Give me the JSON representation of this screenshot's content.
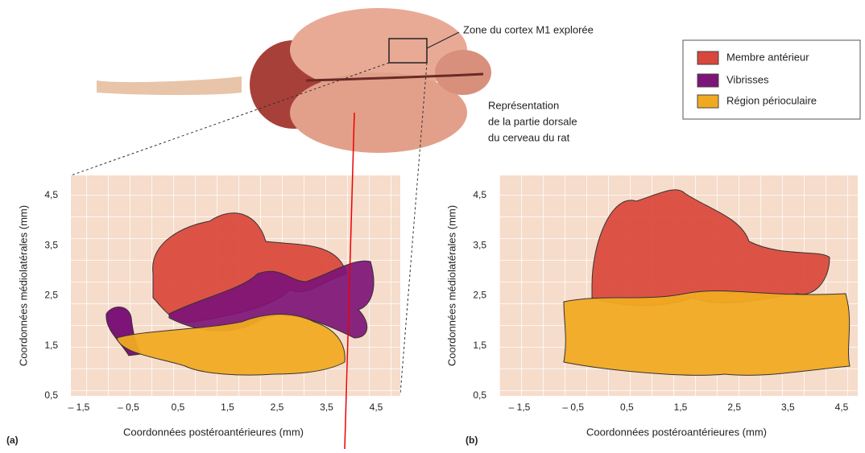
{
  "callout": "Zone du cortex M1 explorée",
  "description": [
    "Représentation",
    "de la partie dorsale",
    "du cerveau du rat"
  ],
  "legend": [
    "Membre antérieur",
    "Vibrisses",
    "Région périoculaire"
  ],
  "panels": [
    {
      "label": "(a)",
      "x_title": "Coordonnées postéroantérieures (mm)",
      "y_title": "Coordonnées médiolatérales (mm)",
      "xticks": [
        "– 1,5",
        "– 0,5",
        "0,5",
        "1,5",
        "2,5",
        "3,5",
        "4,5"
      ],
      "yticks": [
        "4,5",
        "3,5",
        "2,5",
        "1,5",
        "0,5"
      ]
    },
    {
      "label": "(b)",
      "x_title": "Coordonnées postéroantérieures (mm)",
      "y_title": "Coordonnées médiolatérales (mm)",
      "xticks": [
        "– 1,5",
        "– 0,5",
        "0,5",
        "1,5",
        "2,5",
        "3,5",
        "4,5"
      ],
      "yticks": [
        "4,5",
        "3,5",
        "2,5",
        "1,5",
        "0,5"
      ]
    }
  ]
}
